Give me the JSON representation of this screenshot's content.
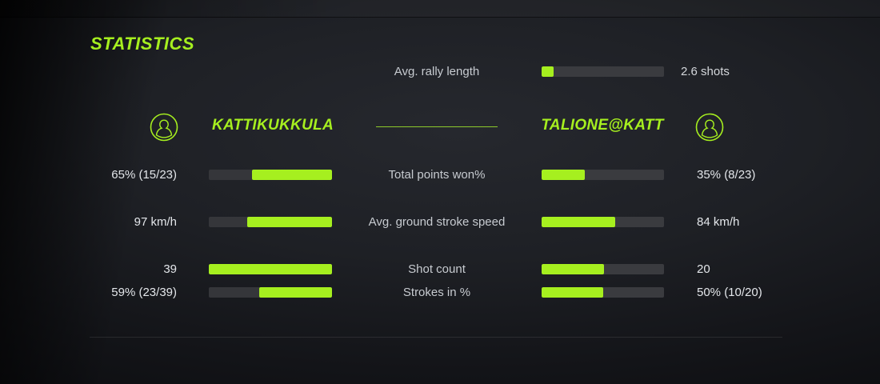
{
  "colors": {
    "accent_green": "#a6ef1f",
    "track_gray": "#35363a",
    "label_gray": "#c7cbd0",
    "value_white": "#e3e6ea",
    "background_dark": "#1e2025"
  },
  "header": {
    "title": "STATISTICS"
  },
  "rally": {
    "label": "Avg. rally length",
    "value": "2.6 shots",
    "fill_pct": 10
  },
  "players": {
    "left": {
      "name": "KATTIKUKKULA",
      "icon": "person-icon"
    },
    "right": {
      "name": "TALIONE@KATT",
      "icon": "person-icon"
    }
  },
  "chart_data": {
    "type": "bar",
    "title": "STATISTICS",
    "categories": [
      "Total points won%",
      "Avg. ground stroke speed",
      "Shot count",
      "Strokes in %"
    ],
    "series": [
      {
        "name": "KATTIKUKKULA",
        "values": [
          "65% (15/23)",
          "97 km/h",
          "39",
          "59% (23/39)"
        ],
        "fill_pct": [
          65,
          69,
          100,
          59
        ]
      },
      {
        "name": "TALIONE@KATT",
        "values": [
          "35% (8/23)",
          "84 km/h",
          "20",
          "50% (10/20)"
        ],
        "fill_pct": [
          35,
          60,
          51,
          50
        ]
      }
    ],
    "extra": {
      "avg_rally_length": "2.6 shots"
    }
  },
  "stats": {
    "rows": [
      {
        "label": "Total points won%",
        "left": {
          "value": "65% (15/23)",
          "fill_pct": 65
        },
        "right": {
          "value": "35% (8/23)",
          "fill_pct": 35
        }
      },
      {
        "label": "Avg. ground stroke speed",
        "left": {
          "value": "97 km/h",
          "fill_pct": 69
        },
        "right": {
          "value": "84 km/h",
          "fill_pct": 60
        }
      },
      {
        "label": "Shot count",
        "left": {
          "value": "39",
          "fill_pct": 100
        },
        "right": {
          "value": "20",
          "fill_pct": 51
        }
      },
      {
        "label": "Strokes in %",
        "left": {
          "value": "59% (23/39)",
          "fill_pct": 59
        },
        "right": {
          "value": "50% (10/20)",
          "fill_pct": 50
        }
      }
    ]
  }
}
